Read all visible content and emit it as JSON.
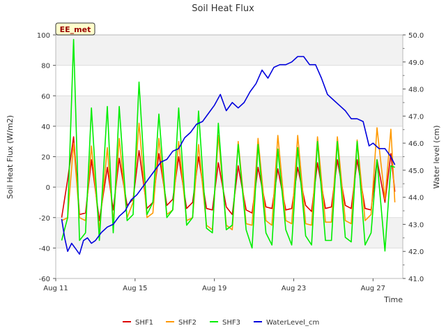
{
  "chart_data": {
    "type": "line",
    "title": "Soil Heat Flux",
    "xlabel": "Time",
    "ylabel": "Soil Heat Flux (W/m2)",
    "y2label": "Water level (cm)",
    "badge": "EE_met",
    "xlim": [
      0,
      17.5
    ],
    "ylim": [
      -60,
      100
    ],
    "y2lim": [
      41.0,
      50.0
    ],
    "xticks": [
      {
        "value": 0,
        "label": "Aug 11"
      },
      {
        "value": 4,
        "label": "Aug 15"
      },
      {
        "value": 8,
        "label": "Aug 19"
      },
      {
        "value": 12,
        "label": "Aug 23"
      },
      {
        "value": 16,
        "label": "Aug 27"
      }
    ],
    "yticks": [
      -60,
      -40,
      -20,
      0,
      20,
      40,
      60,
      80,
      100
    ],
    "y2ticks": [
      "41.0",
      "42.0",
      "43.0",
      "44.0",
      "45.0",
      "46.0",
      "47.0",
      "48.0",
      "49.0",
      "50.0"
    ],
    "bands": [
      [
        -40,
        -20
      ],
      [
        0,
        20
      ],
      [
        40,
        60
      ],
      [
        80,
        100
      ]
    ],
    "legend_position": "bottom-center",
    "series": [
      {
        "name": "SHF1",
        "color": "#dd0000",
        "axis": "left",
        "x": [
          0.3,
          0.6,
          0.9,
          1.2,
          1.5,
          1.8,
          2.2,
          2.6,
          2.9,
          3.2,
          3.6,
          3.9,
          4.2,
          4.6,
          4.9,
          5.2,
          5.6,
          5.9,
          6.2,
          6.6,
          6.9,
          7.2,
          7.6,
          7.9,
          8.2,
          8.6,
          8.9,
          9.2,
          9.6,
          9.9,
          10.2,
          10.6,
          10.9,
          11.2,
          11.6,
          11.9,
          12.2,
          12.6,
          12.9,
          13.2,
          13.6,
          13.9,
          14.2,
          14.6,
          14.9,
          15.2,
          15.6,
          15.9,
          16.2,
          16.6,
          16.9,
          17.1
        ],
        "y": [
          -20,
          5,
          33,
          -18,
          -17,
          18,
          -22,
          13,
          -15,
          19,
          -12,
          -8,
          24,
          -14,
          -10,
          22,
          -12,
          -8,
          20,
          -14,
          -10,
          20,
          -14,
          -15,
          16,
          -13,
          -18,
          14,
          -15,
          -17,
          13,
          -13,
          -14,
          12,
          -15,
          -14,
          13,
          -12,
          -16,
          16,
          -14,
          -13,
          18,
          -12,
          -14,
          18,
          -14,
          -15,
          18,
          -10,
          22,
          -3
        ]
      },
      {
        "name": "SHF2",
        "color": "#ff9900",
        "axis": "left",
        "x": [
          0.3,
          0.6,
          0.9,
          1.2,
          1.5,
          1.8,
          2.2,
          2.6,
          2.9,
          3.2,
          3.6,
          3.9,
          4.2,
          4.6,
          4.9,
          5.2,
          5.6,
          5.9,
          6.2,
          6.6,
          6.9,
          7.2,
          7.6,
          7.9,
          8.2,
          8.6,
          8.9,
          9.2,
          9.6,
          9.9,
          10.2,
          10.6,
          10.9,
          11.2,
          11.6,
          11.9,
          12.2,
          12.6,
          12.9,
          13.2,
          13.6,
          13.9,
          14.2,
          14.6,
          14.9,
          15.2,
          15.6,
          15.9,
          16.2,
          16.6,
          16.9,
          17.1
        ],
        "y": [
          -22,
          -20,
          29,
          -20,
          -22,
          27,
          -28,
          26,
          -23,
          32,
          -20,
          -10,
          42,
          -20,
          -17,
          32,
          -18,
          -15,
          30,
          -22,
          -20,
          28,
          -25,
          -28,
          34,
          -25,
          -28,
          30,
          -24,
          -25,
          32,
          -22,
          -25,
          34,
          -22,
          -24,
          34,
          -24,
          -25,
          33,
          -23,
          -23,
          33,
          -22,
          -24,
          31,
          -22,
          -18,
          39,
          -8,
          38,
          -10
        ]
      },
      {
        "name": "SHF3",
        "color": "#00ee00",
        "axis": "left",
        "x": [
          0.3,
          0.6,
          0.9,
          1.2,
          1.5,
          1.8,
          2.2,
          2.6,
          2.9,
          3.2,
          3.6,
          3.9,
          4.2,
          4.6,
          4.9,
          5.2,
          5.6,
          5.9,
          6.2,
          6.6,
          6.9,
          7.2,
          7.6,
          7.9,
          8.2,
          8.6,
          8.9,
          9.2,
          9.6,
          9.9,
          10.2,
          10.6,
          10.9,
          11.2,
          11.6,
          11.9,
          12.2,
          12.6,
          12.9,
          13.2,
          13.6,
          13.9,
          14.2,
          14.6,
          14.9,
          15.2,
          15.6,
          15.9,
          16.2,
          16.6,
          16.9,
          17.1
        ],
        "y": [
          -35,
          -20,
          97,
          -35,
          -30,
          52,
          -35,
          53,
          -30,
          53,
          -22,
          -18,
          69,
          -18,
          -10,
          48,
          -20,
          -15,
          52,
          -25,
          -20,
          50,
          -27,
          -30,
          42,
          -28,
          -25,
          28,
          -28,
          -40,
          28,
          -30,
          -38,
          25,
          -28,
          -38,
          26,
          -32,
          -38,
          30,
          -35,
          -35,
          30,
          -33,
          -36,
          30,
          -38,
          -30,
          18,
          -42,
          14,
          13
        ]
      },
      {
        "name": "WaterLevel_cm",
        "color": "#0000dd",
        "axis": "right",
        "x": [
          0.3,
          0.45,
          0.6,
          0.8,
          1.0,
          1.2,
          1.4,
          1.6,
          1.8,
          2.0,
          2.3,
          2.6,
          2.9,
          3.2,
          3.5,
          3.8,
          4.1,
          4.4,
          4.7,
          5.0,
          5.3,
          5.6,
          5.9,
          6.2,
          6.5,
          6.8,
          7.1,
          7.4,
          7.7,
          8.0,
          8.3,
          8.6,
          8.9,
          9.2,
          9.5,
          9.8,
          10.1,
          10.4,
          10.7,
          11.0,
          11.3,
          11.6,
          11.9,
          12.2,
          12.5,
          12.8,
          13.1,
          13.4,
          13.7,
          14.0,
          14.3,
          14.6,
          14.9,
          15.2,
          15.5,
          15.8,
          16.0,
          16.3,
          16.6,
          16.9,
          17.1
        ],
        "y": [
          43.2,
          42.5,
          42.0,
          42.3,
          42.1,
          41.9,
          42.4,
          42.5,
          42.3,
          42.4,
          42.7,
          42.9,
          43.0,
          43.3,
          43.5,
          43.9,
          44.1,
          44.4,
          44.7,
          45.0,
          45.3,
          45.4,
          45.7,
          45.8,
          46.2,
          46.4,
          46.7,
          46.8,
          47.1,
          47.4,
          47.8,
          47.2,
          47.5,
          47.3,
          47.5,
          47.9,
          48.2,
          48.7,
          48.4,
          48.8,
          48.9,
          48.9,
          49.0,
          49.2,
          49.2,
          48.9,
          48.9,
          48.4,
          47.8,
          47.6,
          47.4,
          47.2,
          46.9,
          46.9,
          46.8,
          45.9,
          46.0,
          45.8,
          45.8,
          45.5,
          45.2
        ]
      }
    ]
  }
}
